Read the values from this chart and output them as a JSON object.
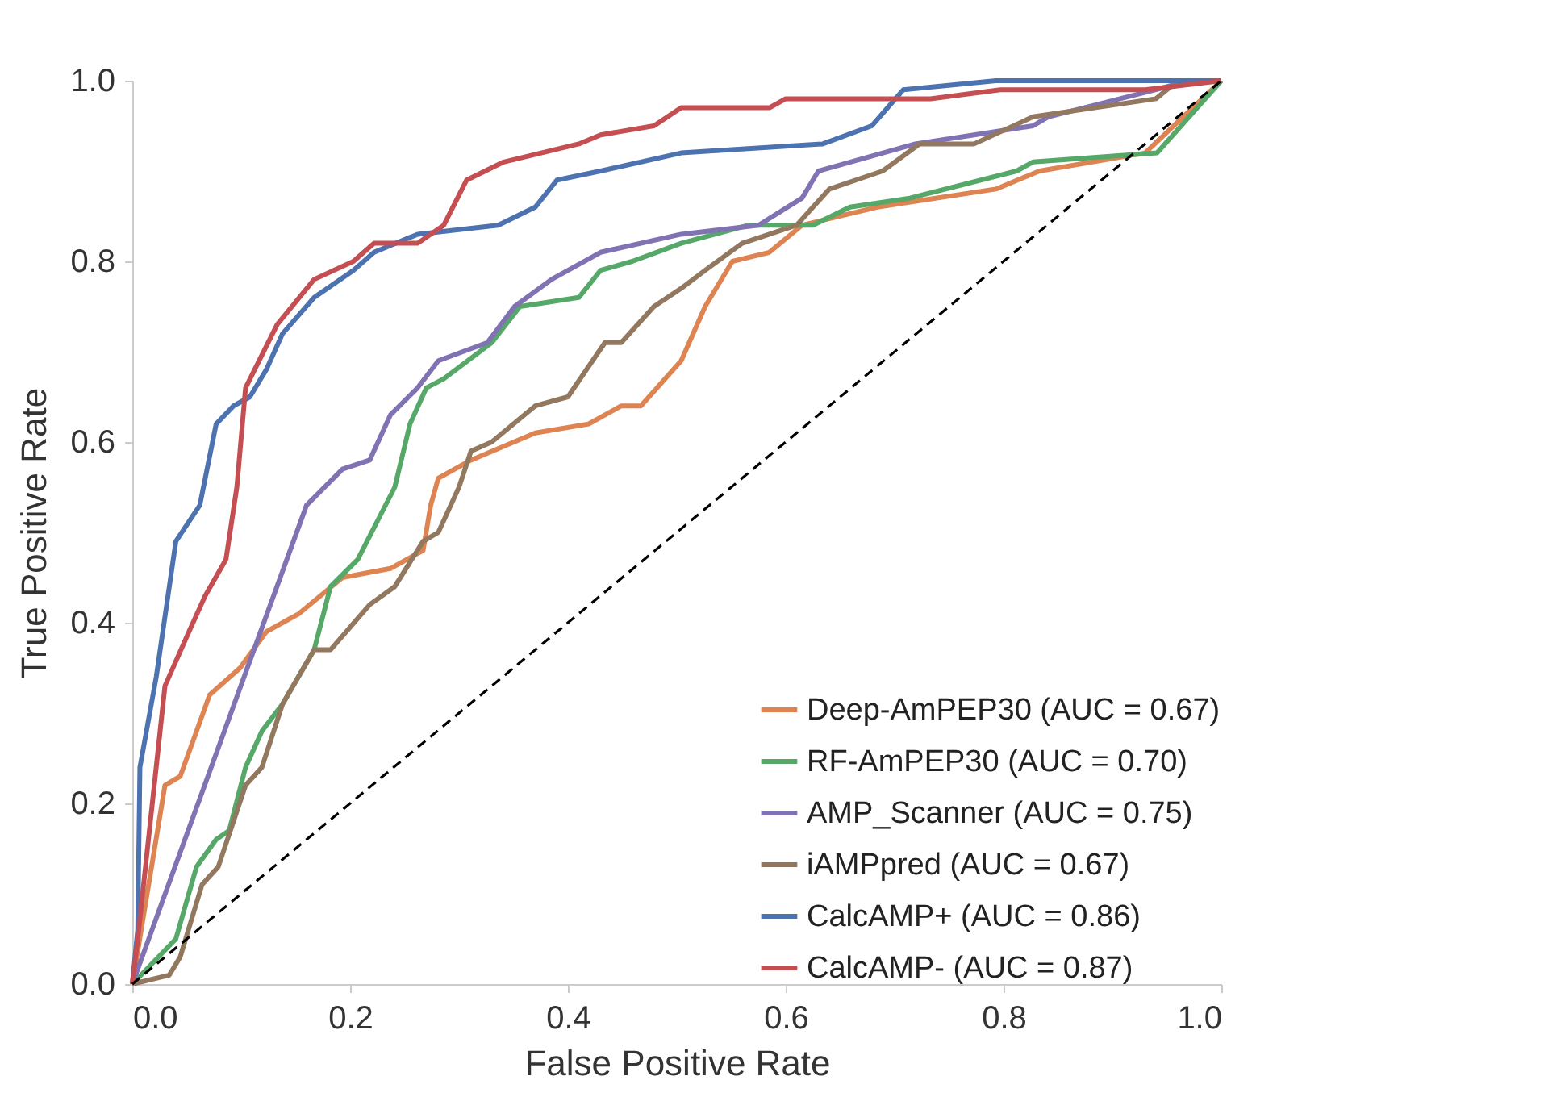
{
  "chart_data": {
    "type": "line",
    "xlabel": "False Positive Rate",
    "ylabel": "True Positive Rate",
    "xlim": [
      0,
      1
    ],
    "ylim": [
      0,
      1
    ],
    "xticks": [
      {
        "value": 0,
        "label": "0.0"
      },
      {
        "value": 0.2,
        "label": "0.2"
      },
      {
        "value": 0.4,
        "label": "0.4"
      },
      {
        "value": 0.6,
        "label": "0.6"
      },
      {
        "value": 0.8,
        "label": "0.8"
      },
      {
        "value": 1,
        "label": "1.0"
      }
    ],
    "yticks": [
      {
        "value": 0,
        "label": "0.0"
      },
      {
        "value": 0.2,
        "label": "0.2"
      },
      {
        "value": 0.4,
        "label": "0.4"
      },
      {
        "value": 0.6,
        "label": "0.6"
      },
      {
        "value": 0.8,
        "label": "0.8"
      },
      {
        "value": 1,
        "label": "1.0"
      }
    ],
    "grid": false,
    "legend": "bottom right",
    "series": [
      {
        "name": "Deep-AmPEP30 (AUC = 0.67)",
        "color": "#dd8452",
        "x": [
          0,
          0.03,
          0.044,
          0.071,
          0.099,
          0.123,
          0.153,
          0.193,
          0.237,
          0.267,
          0.274,
          0.281,
          0.311,
          0.37,
          0.419,
          0.449,
          0.467,
          0.504,
          0.526,
          0.551,
          0.585,
          0.615,
          0.684,
          0.793,
          0.833,
          0.93,
          1
        ],
        "values": [
          0,
          0.22,
          0.23,
          0.32,
          0.35,
          0.39,
          0.41,
          0.45,
          0.46,
          0.48,
          0.53,
          0.56,
          0.58,
          0.61,
          0.62,
          0.64,
          0.64,
          0.69,
          0.75,
          0.8,
          0.81,
          0.84,
          0.86,
          0.88,
          0.9,
          0.92,
          1
        ]
      },
      {
        "name": "RF-AmPEP30 (AUC = 0.70)",
        "color": "#55a868",
        "x": [
          0,
          0.04,
          0.059,
          0.077,
          0.089,
          0.104,
          0.119,
          0.138,
          0.167,
          0.182,
          0.207,
          0.241,
          0.255,
          0.27,
          0.286,
          0.33,
          0.356,
          0.41,
          0.43,
          0.459,
          0.504,
          0.566,
          0.625,
          0.659,
          0.714,
          0.812,
          0.827,
          0.941,
          1
        ],
        "values": [
          0,
          0.05,
          0.13,
          0.16,
          0.17,
          0.24,
          0.28,
          0.31,
          0.37,
          0.44,
          0.47,
          0.55,
          0.62,
          0.66,
          0.67,
          0.71,
          0.75,
          0.76,
          0.79,
          0.8,
          0.82,
          0.84,
          0.84,
          0.86,
          0.87,
          0.9,
          0.91,
          0.92,
          1
        ]
      },
      {
        "name": "AMP_Scanner (AUC = 0.75)",
        "color": "#8172b3",
        "x": [
          0,
          0.16,
          0.193,
          0.218,
          0.237,
          0.262,
          0.281,
          0.326,
          0.351,
          0.385,
          0.43,
          0.504,
          0.575,
          0.615,
          0.63,
          0.719,
          0.773,
          0.827,
          0.841,
          0.94,
          0.97,
          1
        ],
        "values": [
          0,
          0.53,
          0.57,
          0.58,
          0.63,
          0.66,
          0.69,
          0.71,
          0.75,
          0.78,
          0.81,
          0.83,
          0.84,
          0.87,
          0.9,
          0.93,
          0.94,
          0.95,
          0.96,
          0.99,
          1,
          1
        ]
      },
      {
        "name": "iAMPpred (AUC = 0.67)",
        "color": "#937860",
        "x": [
          0,
          0.034,
          0.044,
          0.064,
          0.079,
          0.104,
          0.119,
          0.138,
          0.167,
          0.182,
          0.218,
          0.241,
          0.267,
          0.281,
          0.3,
          0.311,
          0.33,
          0.37,
          0.4,
          0.434,
          0.449,
          0.479,
          0.504,
          0.526,
          0.56,
          0.61,
          0.64,
          0.689,
          0.723,
          0.773,
          0.827,
          0.94,
          0.96,
          1
        ],
        "values": [
          0,
          0.01,
          0.03,
          0.11,
          0.13,
          0.22,
          0.24,
          0.31,
          0.37,
          0.37,
          0.42,
          0.44,
          0.49,
          0.5,
          0.55,
          0.59,
          0.6,
          0.64,
          0.65,
          0.71,
          0.71,
          0.75,
          0.77,
          0.79,
          0.82,
          0.84,
          0.88,
          0.9,
          0.93,
          0.93,
          0.96,
          0.98,
          1,
          1
        ]
      },
      {
        "name": "CalcAMP+ (AUC = 0.86)",
        "color": "#4c72b0",
        "x": [
          0,
          0.005,
          0.007,
          0.022,
          0.04,
          0.062,
          0.077,
          0.093,
          0.108,
          0.123,
          0.138,
          0.167,
          0.203,
          0.222,
          0.262,
          0.336,
          0.37,
          0.39,
          0.43,
          0.504,
          0.634,
          0.679,
          0.708,
          0.793,
          0.871,
          1
        ],
        "values": [
          0,
          0.06,
          0.24,
          0.34,
          0.49,
          0.53,
          0.62,
          0.64,
          0.65,
          0.68,
          0.72,
          0.76,
          0.79,
          0.81,
          0.83,
          0.84,
          0.86,
          0.89,
          0.9,
          0.92,
          0.93,
          0.95,
          0.99,
          1,
          1,
          1
        ]
      },
      {
        "name": "CalcAMP- (AUC = 0.87)",
        "color": "#c44e52",
        "x": [
          0,
          0.005,
          0.03,
          0.052,
          0.067,
          0.086,
          0.096,
          0.104,
          0.133,
          0.167,
          0.203,
          0.222,
          0.262,
          0.286,
          0.307,
          0.341,
          0.41,
          0.43,
          0.479,
          0.504,
          0.585,
          0.6,
          0.733,
          0.797,
          0.93,
          1
        ],
        "values": [
          0,
          0.05,
          0.33,
          0.39,
          0.43,
          0.47,
          0.55,
          0.66,
          0.73,
          0.78,
          0.8,
          0.82,
          0.82,
          0.84,
          0.89,
          0.91,
          0.93,
          0.94,
          0.95,
          0.97,
          0.97,
          0.98,
          0.98,
          0.99,
          0.99,
          1
        ]
      },
      {
        "color": "#000000",
        "line_style": "dashed",
        "x": [
          0,
          1
        ],
        "values": [
          0,
          1
        ]
      }
    ]
  }
}
